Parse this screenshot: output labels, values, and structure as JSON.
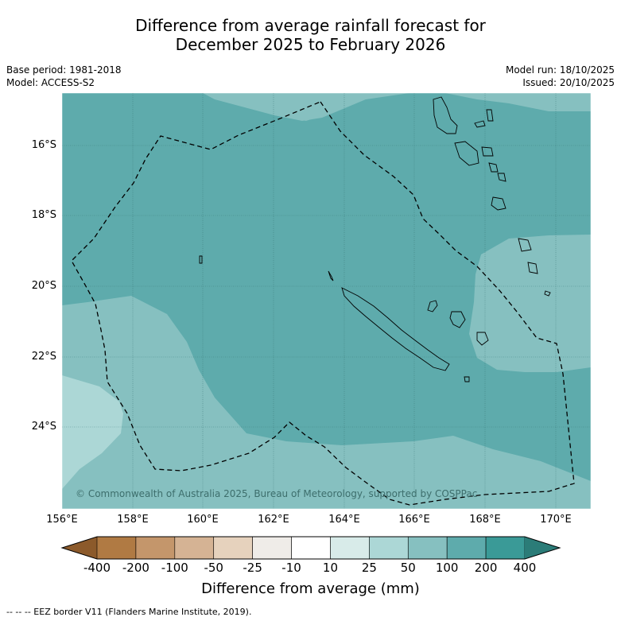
{
  "title": {
    "line1": "Difference from average rainfall forecast for",
    "line2": "December 2025 to February 2026"
  },
  "meta": {
    "base_period": "Base period: 1981-2018",
    "model": "Model: ACCESS-S2",
    "model_run": "Model run: 18/10/2025",
    "issued": "Issued: 20/10/2025"
  },
  "map": {
    "lat_labels": [
      "16°S",
      "18°S",
      "20°S",
      "22°S",
      "24°S"
    ],
    "lon_labels": [
      "156°E",
      "158°E",
      "160°E",
      "162°E",
      "164°E",
      "166°E",
      "168°E",
      "170°E"
    ],
    "copyright": "© Commonwealth of Australia 2025, Bureau of Meteorology, supported by COSPPac"
  },
  "colorbar": {
    "labels": [
      "-400",
      "-200",
      "-100",
      "-50",
      "-25",
      "-10",
      "10",
      "25",
      "50",
      "100",
      "200",
      "400"
    ],
    "colors": [
      "#8c5a2b",
      "#b07a43",
      "#c4966b",
      "#d5b394",
      "#e6d2bd",
      "#efece8",
      "#ffffff",
      "#d8ebe9",
      "#acd7d6",
      "#86c0c0",
      "#5eabac",
      "#3a9a97",
      "#2b7c78"
    ],
    "title": "Difference from average (mm)"
  },
  "legend": {
    "footer": "--  --  -- EEZ border V11 (Flanders Marine Institute, 2019)."
  }
}
